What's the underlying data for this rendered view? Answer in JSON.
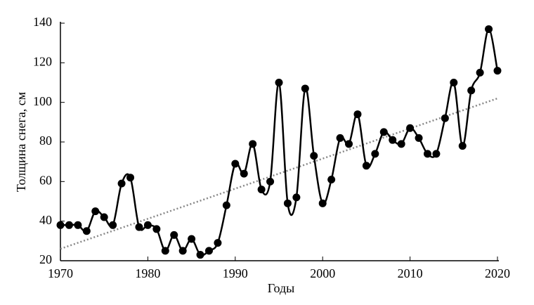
{
  "chart_data": {
    "type": "line",
    "x_label": "Годы",
    "y_label": "Толщина снега, см",
    "x": [
      1970,
      1971,
      1972,
      1973,
      1974,
      1975,
      1976,
      1977,
      1978,
      1979,
      1980,
      1981,
      1982,
      1983,
      1984,
      1985,
      1986,
      1987,
      1988,
      1989,
      1990,
      1991,
      1992,
      1993,
      1994,
      1995,
      1996,
      1997,
      1998,
      1999,
      2000,
      2001,
      2002,
      2003,
      2004,
      2005,
      2006,
      2007,
      2008,
      2009,
      2010,
      2011,
      2012,
      2013,
      2014,
      2015,
      2016,
      2017,
      2018,
      2019,
      2020
    ],
    "series": [
      {
        "color": "#000000",
        "values": [
          38,
          38,
          38,
          35,
          45,
          42,
          38,
          59,
          62,
          37,
          38,
          36,
          25,
          33,
          25,
          31,
          23,
          25,
          29,
          48,
          69,
          64,
          79,
          56,
          60,
          110,
          49,
          52,
          107,
          73,
          49,
          61,
          82,
          79,
          94,
          68,
          74,
          85,
          81,
          79,
          87,
          82,
          74,
          74,
          92,
          110,
          78,
          106,
          115,
          137,
          116
        ]
      }
    ],
    "trend": {
      "x": [
        1970,
        2020
      ],
      "values": [
        26,
        102
      ],
      "color": "#888888"
    },
    "xlim": [
      1970,
      2020
    ],
    "xticks": [
      1970,
      1980,
      1990,
      2000,
      2010,
      2020
    ],
    "ylim": [
      20,
      140
    ],
    "yticks": [
      20,
      40,
      60,
      80,
      100,
      120,
      140
    ]
  }
}
